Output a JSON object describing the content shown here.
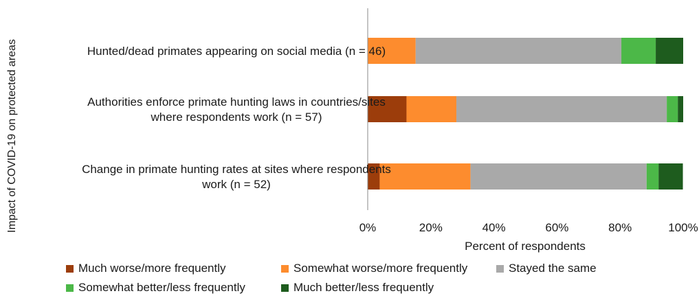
{
  "chart_data": {
    "type": "bar",
    "orientation": "horizontal",
    "stacked": true,
    "percent": true,
    "ylabel": "Impact of COVID-19 on protected areas",
    "xlabel": "Percent of respondents",
    "xlim": [
      0,
      100
    ],
    "xticks": [
      "0%",
      "20%",
      "40%",
      "60%",
      "80%",
      "100%"
    ],
    "grid": false,
    "legend_position": "bottom",
    "categories": [
      [
        "Hunted/dead primates appearing on social media (n = 46)"
      ],
      [
        "Authorities enforce primate hunting laws in countries/sites",
        "where respondents work (n = 57)"
      ],
      [
        "Change in primate hunting rates at sites where respondents",
        "work (n = 52)"
      ]
    ],
    "series": [
      {
        "name": "Much worse/more frequently",
        "color": "#9c3d0b",
        "values": [
          0,
          12.3,
          3.8
        ]
      },
      {
        "name": "Somewhat worse/more frequently",
        "color": "#fd8c2e",
        "values": [
          15.2,
          15.8,
          28.8
        ]
      },
      {
        "name": "Stayed the same",
        "color": "#a9a9a9",
        "values": [
          65.2,
          66.7,
          55.8
        ]
      },
      {
        "name": "Somewhat better/less frequently",
        "color": "#4cb848",
        "values": [
          10.9,
          3.5,
          3.8
        ]
      },
      {
        "name": "Much better/less frequently",
        "color": "#1e5c1e",
        "values": [
          8.7,
          1.7,
          7.7
        ]
      }
    ]
  }
}
